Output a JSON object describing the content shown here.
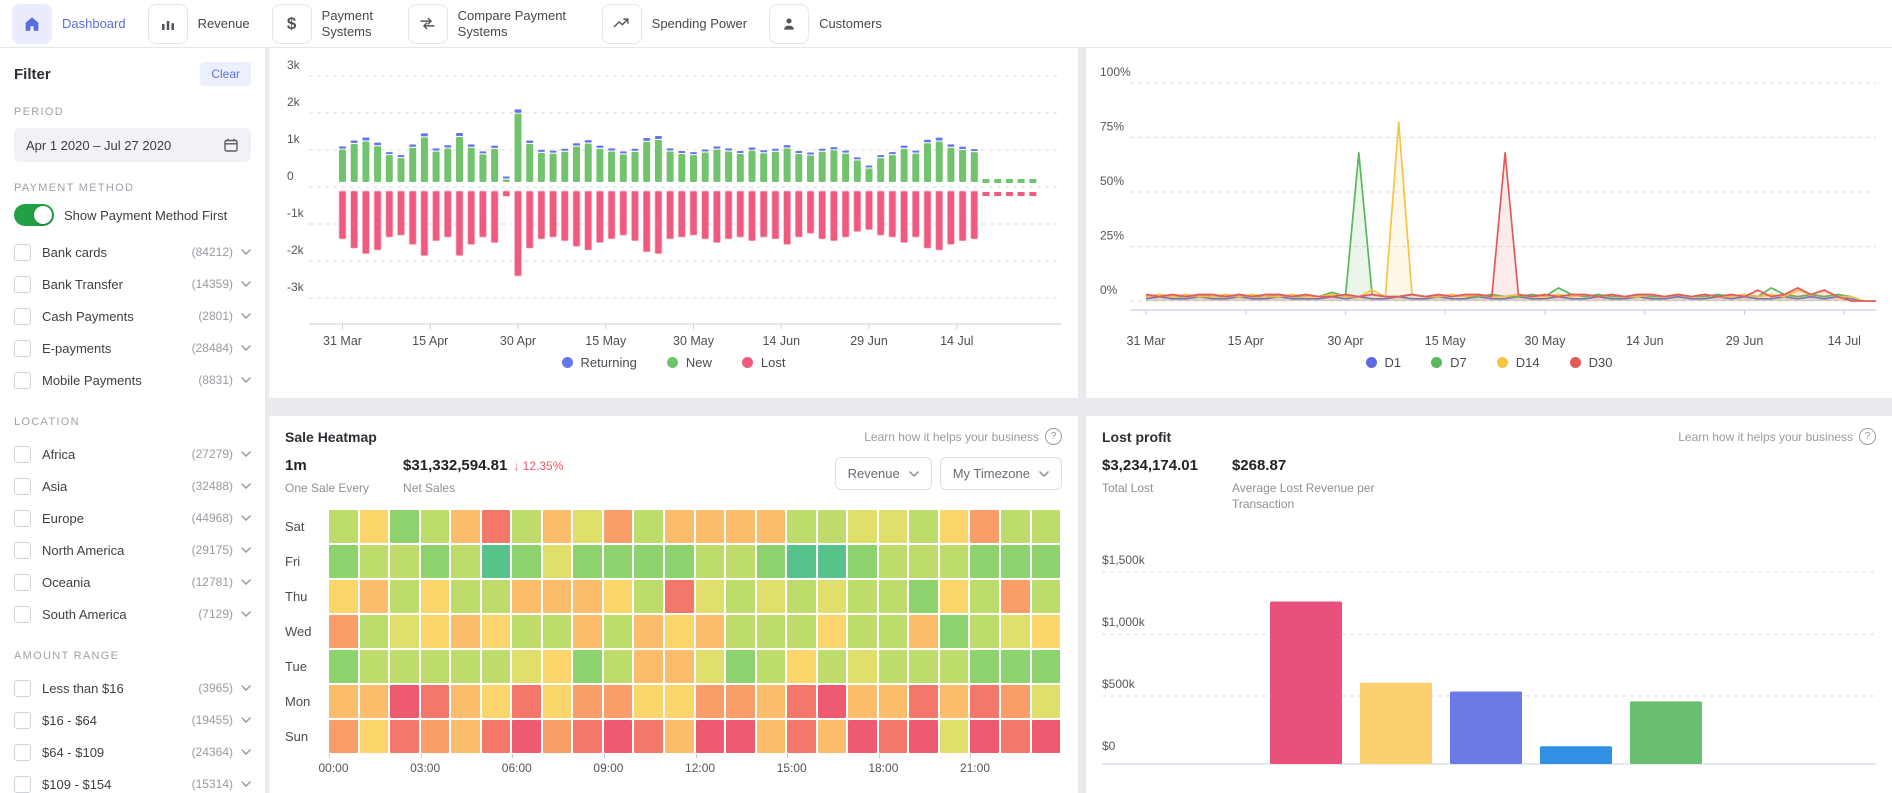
{
  "nav": {
    "items": [
      {
        "label": "Dashboard",
        "icon": "home",
        "active": true
      },
      {
        "label": "Revenue",
        "icon": "bar-chart",
        "active": false
      },
      {
        "label": "Payment Systems",
        "icon": "dollar",
        "active": false
      },
      {
        "label": "Compare Payment Systems",
        "icon": "compare-arrows",
        "active": false
      },
      {
        "label": "Spending Power",
        "icon": "trending-up",
        "active": false
      },
      {
        "label": "Customers",
        "icon": "person",
        "active": false
      }
    ]
  },
  "sidebar": {
    "title": "Filter",
    "clear_label": "Clear",
    "period": {
      "label": "PERIOD",
      "value": "Apr 1 2020 – Jul 27 2020"
    },
    "payment_method": {
      "label": "PAYMENT METHOD",
      "toggle_label": "Show Payment Method First",
      "toggle_on": true,
      "options": [
        {
          "label": "Bank cards",
          "count": "(84212)"
        },
        {
          "label": "Bank Transfer",
          "count": "(14359)"
        },
        {
          "label": "Cash Payments",
          "count": "(2801)"
        },
        {
          "label": "E-payments",
          "count": "(28484)"
        },
        {
          "label": "Mobile Payments",
          "count": "(8831)"
        }
      ]
    },
    "location": {
      "label": "LOCATION",
      "options": [
        {
          "label": "Africa",
          "count": "(27279)"
        },
        {
          "label": "Asia",
          "count": "(32488)"
        },
        {
          "label": "Europe",
          "count": "(44968)"
        },
        {
          "label": "North America",
          "count": "(29175)"
        },
        {
          "label": "Oceania",
          "count": "(12781)"
        },
        {
          "label": "South America",
          "count": "(7129)"
        }
      ]
    },
    "amount_range": {
      "label": "AMOUNT RANGE",
      "options": [
        {
          "label": "Less than $16",
          "count": "(3965)"
        },
        {
          "label": "$16 - $64",
          "count": "(19455)"
        },
        {
          "label": "$64 - $109",
          "count": "(24364)"
        },
        {
          "label": "$109 - $154",
          "count": "(15314)"
        }
      ]
    }
  },
  "heatmap_card": {
    "title": "Sale Heatmap",
    "help_label": "Learn how it helps your business",
    "stats": [
      {
        "value": "1m",
        "label": "One Sale Every",
        "delta": ""
      },
      {
        "value": "$31,332,594.81",
        "label": "Net Sales",
        "delta": "12.35%"
      }
    ],
    "dropdowns": [
      "Revenue",
      "My Timezone"
    ]
  },
  "lost_profit_card": {
    "title": "Lost profit",
    "help_label": "Learn how it helps your business",
    "stats": [
      {
        "value": "$3,234,174.01",
        "label": "Total Lost",
        "delta": ""
      },
      {
        "value": "$268.87",
        "label": "Average Lost Revenue per Transaction",
        "delta": ""
      }
    ]
  },
  "chart_data": [
    {
      "id": "customers",
      "type": "bar",
      "stacked": true,
      "title": "",
      "ylim": [
        -3000,
        3000
      ],
      "yticks": [
        "3k",
        "2k",
        "1k",
        "0",
        "-1k",
        "-2k",
        "-3k"
      ],
      "xticks": [
        "31 Mar",
        "15 Apr",
        "30 Apr",
        "15 May",
        "30 May",
        "14 Jun",
        "29 Jun",
        "14 Jul"
      ],
      "grid": "dashed-horizontal",
      "legend_position": "bottom",
      "forecast_stub_count": 5,
      "series": [
        {
          "name": "Returning",
          "color": "#6577e8",
          "values": [
            60,
            70,
            80,
            70,
            50,
            40,
            60,
            80,
            55,
            60,
            80,
            65,
            50,
            60,
            20,
            90,
            70,
            55,
            50,
            55,
            65,
            70,
            60,
            55,
            50,
            55,
            75,
            80,
            55,
            50,
            45,
            55,
            60,
            55,
            50,
            60,
            55,
            55,
            65,
            50,
            45,
            55,
            60,
            50,
            40,
            30,
            45,
            50,
            60,
            50,
            70,
            75,
            65,
            60,
            55
          ]
        },
        {
          "name": "New",
          "color": "#72c36e",
          "values": [
            930,
            1080,
            1150,
            1020,
            780,
            700,
            980,
            1260,
            880,
            960,
            1270,
            980,
            800,
            950,
            120,
            1900,
            1080,
            840,
            820,
            870,
            1010,
            1090,
            950,
            880,
            800,
            870,
            1140,
            1190,
            880,
            810,
            780,
            850,
            930,
            880,
            810,
            900,
            830,
            870,
            960,
            810,
            770,
            870,
            910,
            820,
            640,
            420,
            700,
            780,
            950,
            820,
            1100,
            1150,
            980,
            920,
            860
          ]
        },
        {
          "name": "Lost",
          "color": "#ee5b7e",
          "values": [
            -1350,
            -1600,
            -1750,
            -1650,
            -1300,
            -1250,
            -1500,
            -1800,
            -1400,
            -1300,
            -1800,
            -1500,
            -1300,
            -1450,
            -200,
            -2350,
            -1600,
            -1350,
            -1300,
            -1400,
            -1550,
            -1650,
            -1450,
            -1350,
            -1250,
            -1400,
            -1700,
            -1750,
            -1350,
            -1300,
            -1250,
            -1350,
            -1450,
            -1350,
            -1300,
            -1400,
            -1300,
            -1350,
            -1500,
            -1300,
            -1200,
            -1350,
            -1400,
            -1300,
            -1150,
            -1100,
            -1250,
            -1300,
            -1450,
            -1300,
            -1600,
            -1650,
            -1500,
            -1400,
            -1350
          ]
        }
      ]
    },
    {
      "id": "retention",
      "type": "line",
      "title": "",
      "ylim": [
        0,
        100
      ],
      "yticks": [
        "0%",
        "25%",
        "50%",
        "75%",
        "100%"
      ],
      "xticks": [
        "31 Mar",
        "15 Apr",
        "30 Apr",
        "15 May",
        "30 May",
        "14 Jun",
        "29 Jun",
        "14 Jul"
      ],
      "grid": "dashed-horizontal",
      "legend_position": "bottom",
      "series": [
        {
          "name": "D1",
          "color": "#5b6ce0",
          "values": [
            1,
            2,
            1,
            1,
            2,
            1,
            1,
            2,
            1,
            1,
            2,
            1,
            1,
            1,
            2,
            1,
            2,
            1,
            1,
            2,
            1,
            1,
            2,
            1,
            1,
            2,
            1,
            1,
            2,
            1,
            1,
            2,
            1,
            1,
            2,
            1,
            1,
            2,
            1,
            1,
            2,
            1,
            1,
            2,
            1,
            2,
            1,
            1,
            2,
            1,
            2,
            1,
            2,
            1,
            0
          ]
        },
        {
          "name": "D7",
          "color": "#57b85c",
          "values": [
            2,
            3,
            2,
            2,
            3,
            2,
            2,
            3,
            2,
            2,
            3,
            2,
            2,
            2,
            4,
            2,
            68,
            3,
            2,
            2,
            3,
            2,
            2,
            3,
            2,
            2,
            3,
            2,
            2,
            3,
            2,
            6,
            3,
            2,
            3,
            2,
            2,
            3,
            2,
            2,
            3,
            2,
            2,
            3,
            2,
            3,
            2,
            6,
            3,
            2,
            3,
            2,
            3,
            2,
            0
          ]
        },
        {
          "name": "D14",
          "color": "#f5c445",
          "values": [
            2,
            3,
            2,
            3,
            2,
            2,
            3,
            2,
            3,
            2,
            2,
            3,
            2,
            2,
            3,
            2,
            2,
            5,
            2,
            82,
            3,
            2,
            2,
            3,
            2,
            3,
            2,
            2,
            3,
            2,
            2,
            3,
            2,
            3,
            2,
            3,
            2,
            2,
            3,
            2,
            3,
            2,
            3,
            2,
            2,
            3,
            2,
            3,
            2,
            5,
            3,
            5,
            2,
            2,
            0
          ]
        },
        {
          "name": "D30",
          "color": "#e45a5a",
          "values": [
            3,
            2,
            3,
            2,
            3,
            3,
            2,
            3,
            2,
            3,
            3,
            2,
            3,
            2,
            2,
            3,
            2,
            3,
            2,
            2,
            3,
            2,
            3,
            2,
            3,
            3,
            2,
            68,
            3,
            2,
            3,
            2,
            3,
            3,
            2,
            3,
            2,
            3,
            3,
            2,
            3,
            2,
            3,
            2,
            3,
            2,
            5,
            2,
            3,
            6,
            3,
            5,
            2,
            0,
            0
          ]
        }
      ]
    },
    {
      "id": "sale_heatmap",
      "type": "heatmap",
      "rows": [
        "Sat",
        "Fri",
        "Thu",
        "Wed",
        "Tue",
        "Mon",
        "Sun"
      ],
      "hour_labels": [
        "00:00",
        "03:00",
        "06:00",
        "09:00",
        "12:00",
        "15:00",
        "18:00",
        "21:00"
      ],
      "palette_low_to_high": [
        "#ee5b71",
        "#f4786a",
        "#f99e68",
        "#fbbd6b",
        "#fbd56a",
        "#e0df6c",
        "#bddc6b",
        "#8ed26e",
        "#58c28c"
      ],
      "cells": [
        [
          6,
          4,
          7,
          6,
          3,
          1,
          6,
          3,
          5,
          2,
          6,
          3,
          3,
          3,
          3,
          6,
          6,
          5,
          5,
          6,
          4,
          2,
          6,
          6
        ],
        [
          7,
          6,
          6,
          7,
          6,
          8,
          7,
          5,
          7,
          7,
          7,
          7,
          6,
          6,
          7,
          8,
          8,
          7,
          6,
          6,
          6,
          7,
          7,
          7
        ],
        [
          4,
          3,
          6,
          4,
          6,
          6,
          3,
          3,
          3,
          4,
          6,
          1,
          5,
          6,
          5,
          6,
          5,
          6,
          6,
          7,
          4,
          6,
          2,
          6
        ],
        [
          2,
          6,
          5,
          4,
          3,
          4,
          6,
          6,
          3,
          6,
          3,
          4,
          3,
          6,
          6,
          6,
          4,
          6,
          6,
          3,
          7,
          6,
          5,
          4
        ],
        [
          7,
          6,
          6,
          6,
          6,
          6,
          5,
          4,
          7,
          6,
          3,
          3,
          5,
          7,
          6,
          4,
          6,
          5,
          6,
          6,
          6,
          7,
          7,
          7
        ],
        [
          3,
          3,
          0,
          1,
          3,
          4,
          1,
          4,
          2,
          2,
          4,
          4,
          2,
          2,
          3,
          1,
          0,
          3,
          3,
          1,
          3,
          1,
          2,
          5
        ],
        [
          2,
          4,
          1,
          2,
          3,
          1,
          0,
          2,
          1,
          0,
          1,
          3,
          0,
          0,
          3,
          1,
          3,
          0,
          1,
          0,
          5,
          0,
          1,
          0
        ]
      ]
    },
    {
      "id": "lost_profit",
      "type": "bar",
      "title": "",
      "ylim": [
        0,
        1500
      ],
      "yticks": [
        "$1,500k",
        "$1,000k",
        "$500k",
        "$0"
      ],
      "values_k": [
        1310,
        655,
        585,
        143,
        505
      ],
      "colors": [
        "#e8517b",
        "#fbcf6d",
        "#6e79e8",
        "#2f90e4",
        "#68bf6f"
      ],
      "grid": "dashed-horizontal"
    }
  ]
}
